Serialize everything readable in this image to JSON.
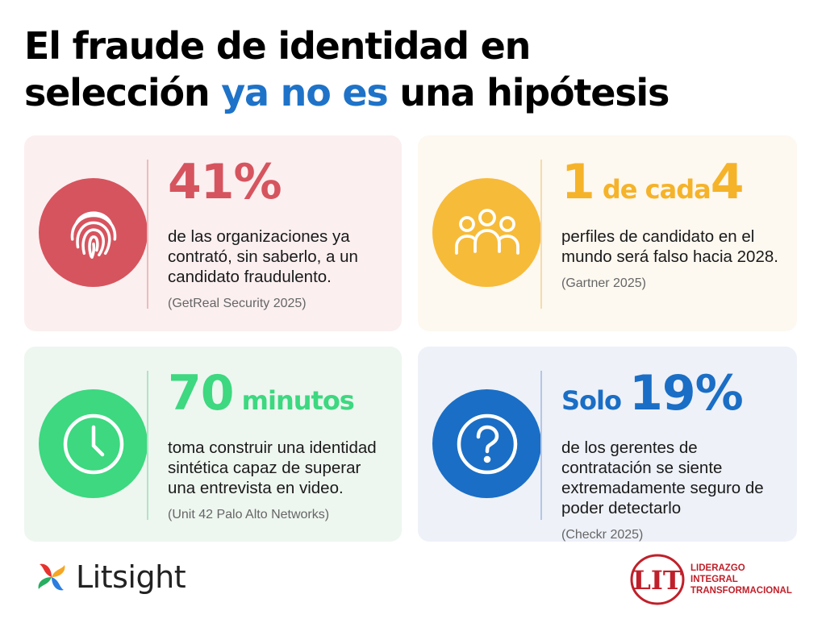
{
  "title": {
    "line1": "El fraude de identidad en",
    "line2_start": "selección ",
    "line2_accent": "ya no es",
    "line2_end": " una hipótesis"
  },
  "cards": [
    {
      "icon": "fingerprint-icon",
      "stat_parts": [
        {
          "text": "41%",
          "size": "big"
        }
      ],
      "description": "de las organizaciones ya contrató, sin saberlo, a un candidato fraudulento.",
      "source": "(GetReal Security 2025)"
    },
    {
      "icon": "people-group-icon",
      "stat_parts": [
        {
          "text": "1",
          "size": "big"
        },
        {
          "text": " de cada",
          "size": "mid"
        },
        {
          "text": "4",
          "size": "big"
        }
      ],
      "description": "perfiles de candidato en el mundo será falso hacia 2028.",
      "source": "(Gartner 2025)"
    },
    {
      "icon": "clock-icon",
      "stat_parts": [
        {
          "text": "70",
          "size": "big"
        },
        {
          "text": " minutos",
          "size": "mid"
        }
      ],
      "description": "toma construir una identidad sintética capaz de superar una entrevista en video.",
      "source": "(Unit 42 Palo Alto Networks)"
    },
    {
      "icon": "question-mark-icon",
      "stat_parts": [
        {
          "text": "Solo ",
          "size": "mid"
        },
        {
          "text": "19%",
          "size": "big"
        }
      ],
      "description": "de los gerentes de contratación se siente extremadamente seguro de poder detectarlo",
      "source": "(Checkr 2025)"
    }
  ],
  "logos": {
    "litsight": {
      "name": "Litsight",
      "icon": "pinwheel-icon"
    },
    "lit": {
      "mark": "LIT",
      "line1": "LIDERAZGO",
      "line2": "INTEGRAL",
      "line3": "TRANSFORMACIONAL"
    }
  },
  "colors": {
    "title_accent": "#1e73c8",
    "red": "#d6545e",
    "yellow": "#f7bb3a",
    "green": "#3dd880",
    "blue": "#1a6ec5",
    "lit_red": "#c0202a"
  }
}
